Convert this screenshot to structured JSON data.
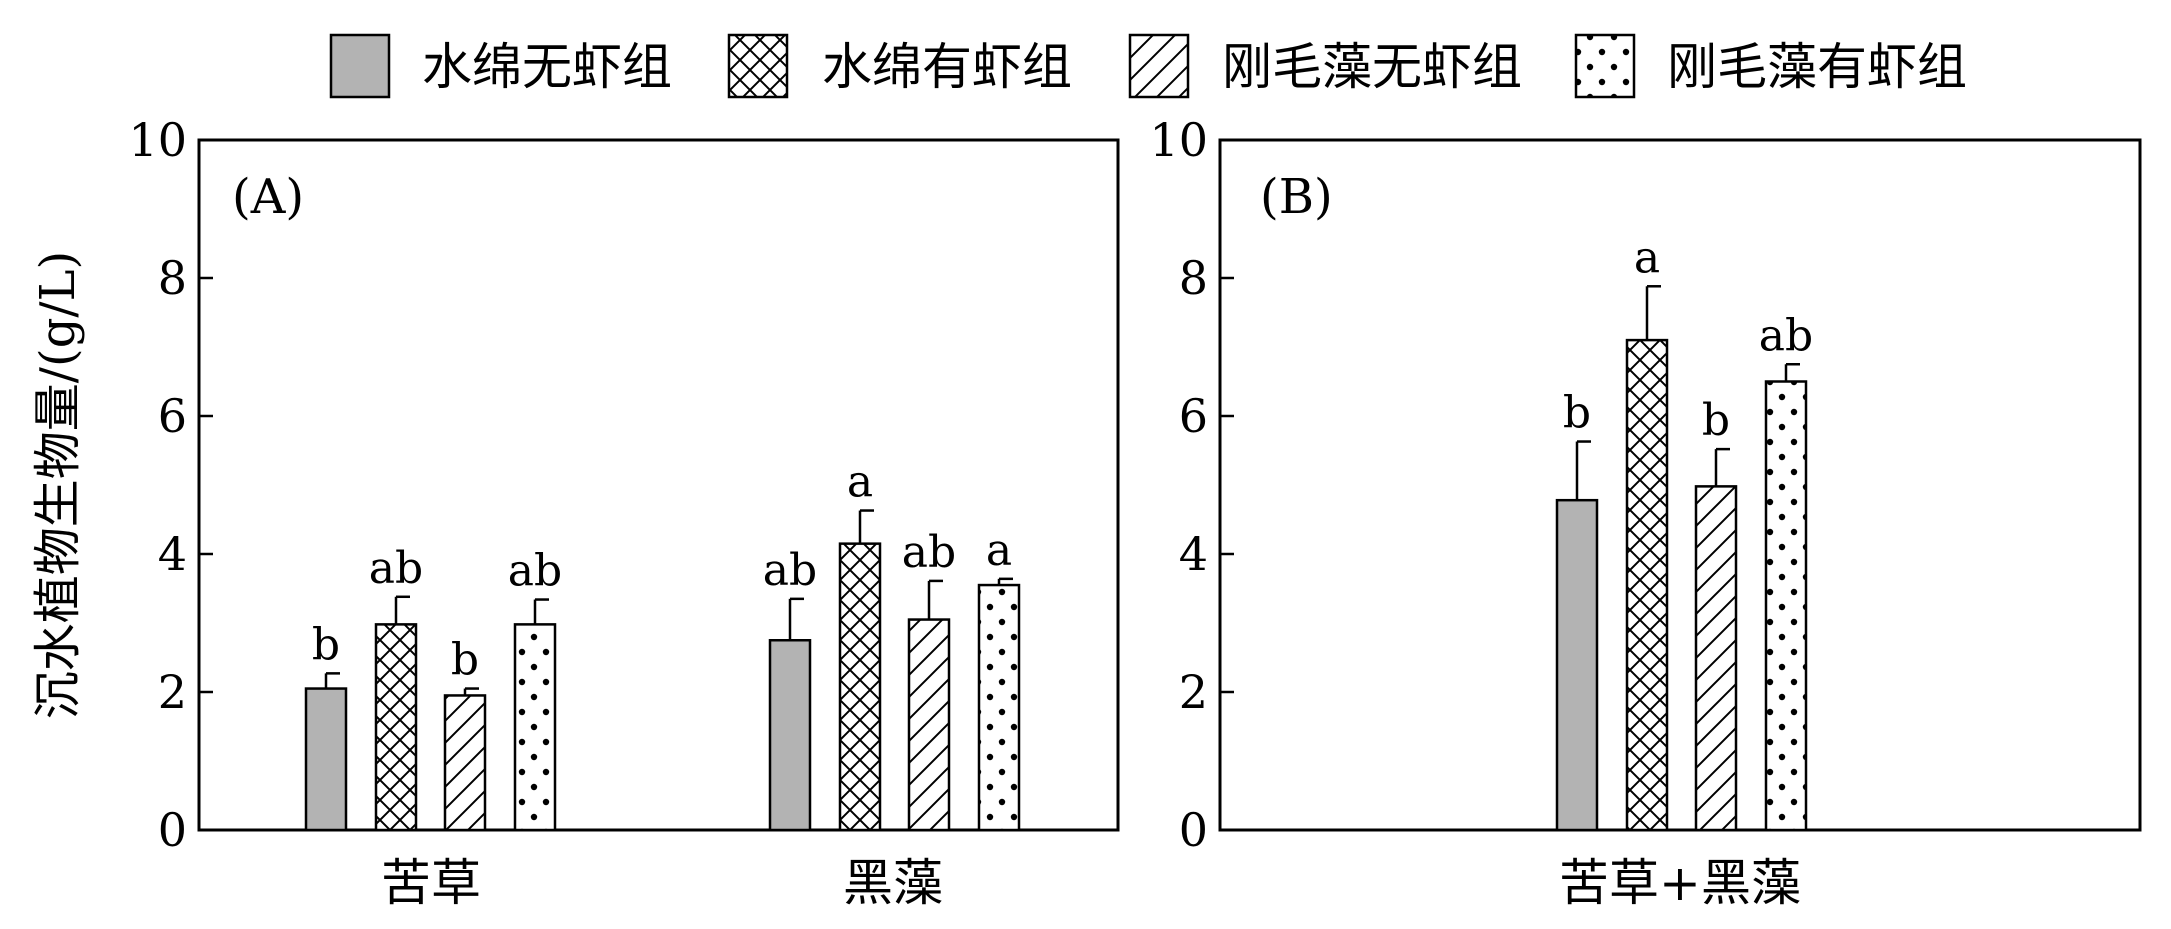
{
  "chart_data": {
    "type": "bar",
    "ylabel": "沉水植物生物量/(g/L)",
    "ylim": [
      0,
      10
    ],
    "yticks": [
      0,
      2,
      4,
      6,
      8,
      10
    ],
    "legend": {
      "placement": "top",
      "entries": [
        {
          "name": "水绵无虾组",
          "pattern": "solid-gray"
        },
        {
          "name": "水绵有虾组",
          "pattern": "crosshatch"
        },
        {
          "name": "刚毛藻无虾组",
          "pattern": "diagonal"
        },
        {
          "name": "刚毛藻有虾组",
          "pattern": "dots"
        }
      ]
    },
    "colors": {
      "solid_fill": "#b3b3b3",
      "outline": "#000000"
    },
    "panels": [
      {
        "label": "(A)",
        "categories": [
          "苦草",
          "黑藻"
        ],
        "groups": [
          {
            "category": "苦草",
            "bars": [
              {
                "series": "水绵无虾组",
                "value": 2.05,
                "error": 0.22,
                "sig": "b"
              },
              {
                "series": "水绵有虾组",
                "value": 2.98,
                "error": 0.4,
                "sig": "ab"
              },
              {
                "series": "刚毛藻无虾组",
                "value": 1.95,
                "error": 0.1,
                "sig": "b"
              },
              {
                "series": "刚毛藻有虾组",
                "value": 2.98,
                "error": 0.36,
                "sig": "ab"
              }
            ]
          },
          {
            "category": "黑藻",
            "bars": [
              {
                "series": "水绵无虾组",
                "value": 2.75,
                "error": 0.6,
                "sig": "ab"
              },
              {
                "series": "水绵有虾组",
                "value": 4.15,
                "error": 0.48,
                "sig": "a"
              },
              {
                "series": "刚毛藻无虾组",
                "value": 3.05,
                "error": 0.56,
                "sig": "ab"
              },
              {
                "series": "刚毛藻有虾组",
                "value": 3.55,
                "error": 0.09,
                "sig": "a"
              }
            ]
          }
        ]
      },
      {
        "label": "(B)",
        "categories": [
          "苦草+黑藻"
        ],
        "groups": [
          {
            "category": "苦草+黑藻",
            "bars": [
              {
                "series": "水绵无虾组",
                "value": 4.78,
                "error": 0.85,
                "sig": "b"
              },
              {
                "series": "水绵有虾组",
                "value": 7.1,
                "error": 0.78,
                "sig": "a"
              },
              {
                "series": "刚毛藻无虾组",
                "value": 4.98,
                "error": 0.54,
                "sig": "b"
              },
              {
                "series": "刚毛藻有虾组",
                "value": 6.5,
                "error": 0.25,
                "sig": "ab"
              }
            ]
          }
        ]
      }
    ]
  }
}
